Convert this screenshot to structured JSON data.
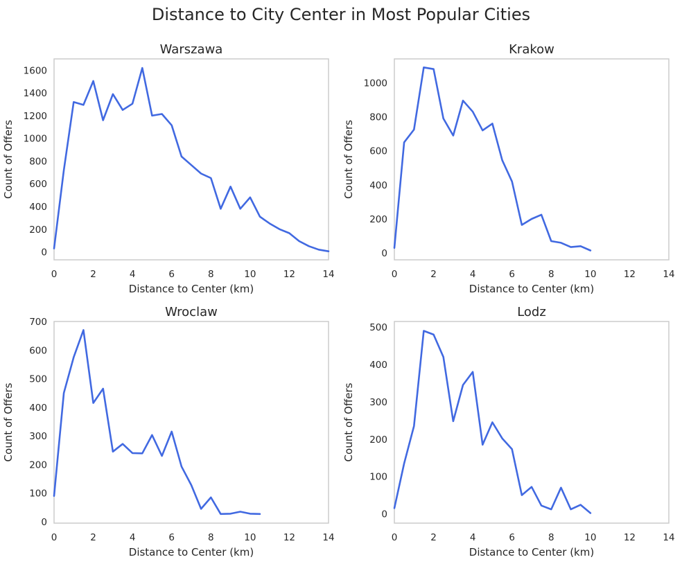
{
  "figure": {
    "title": "Distance to City Center in Most Popular Cities",
    "line_color": "#4169E1"
  },
  "chart_data": [
    {
      "type": "line",
      "title": "Warszawa",
      "xlabel": "Distance to Center (km)",
      "ylabel": "Count of Offers",
      "xlim": [
        0,
        14
      ],
      "ylim": [
        -70,
        1700
      ],
      "xticks": [
        0,
        2,
        4,
        6,
        8,
        10,
        12,
        14
      ],
      "yticks": [
        0,
        200,
        400,
        600,
        800,
        1000,
        1200,
        1400,
        1600
      ],
      "grid": false,
      "x": [
        0,
        0.5,
        1,
        1.5,
        2,
        2.5,
        3,
        3.5,
        4,
        4.5,
        5,
        5.5,
        6,
        6.5,
        7,
        7.5,
        8,
        8.5,
        9,
        9.5,
        10,
        10.5,
        11,
        11.5,
        12,
        12.5,
        13,
        13.5,
        14
      ],
      "y": [
        30,
        720,
        1320,
        1295,
        1505,
        1160,
        1390,
        1250,
        1305,
        1620,
        1200,
        1215,
        1115,
        840,
        765,
        690,
        650,
        380,
        575,
        380,
        480,
        310,
        250,
        200,
        165,
        95,
        50,
        20,
        5
      ]
    },
    {
      "type": "line",
      "title": "Krakow",
      "xlabel": "Distance to Center (km)",
      "ylabel": "Count of Offers",
      "xlim": [
        0,
        14
      ],
      "ylim": [
        -40,
        1140
      ],
      "xticks": [
        0,
        2,
        4,
        6,
        8,
        10,
        12,
        14
      ],
      "yticks": [
        0,
        200,
        400,
        600,
        800,
        1000
      ],
      "grid": false,
      "x": [
        0,
        0.5,
        1,
        1.5,
        2,
        2.5,
        3,
        3.5,
        4,
        4.5,
        5,
        5.5,
        6,
        6.5,
        7,
        7.5,
        8,
        8.5,
        9,
        9.5,
        10
      ],
      "y": [
        30,
        650,
        725,
        1090,
        1080,
        790,
        690,
        895,
        830,
        720,
        760,
        545,
        420,
        165,
        200,
        225,
        70,
        60,
        35,
        40,
        15
      ]
    },
    {
      "type": "line",
      "title": "Wroclaw",
      "xlabel": "Distance to Center (km)",
      "ylabel": "Count of Offers",
      "xlim": [
        0,
        14
      ],
      "ylim": [
        -5,
        700
      ],
      "xticks": [
        0,
        2,
        4,
        6,
        8,
        10,
        12,
        14
      ],
      "yticks": [
        0,
        100,
        200,
        300,
        400,
        500,
        600,
        700
      ],
      "grid": false,
      "x": [
        0,
        0.5,
        1,
        1.5,
        2,
        2.5,
        3,
        3.5,
        4,
        4.5,
        5,
        5.5,
        6,
        6.5,
        7,
        7.5,
        8,
        8.5,
        9,
        9.5,
        10,
        10.5
      ],
      "y": [
        90,
        450,
        575,
        670,
        415,
        465,
        245,
        272,
        240,
        239,
        303,
        230,
        315,
        193,
        128,
        45,
        85,
        27,
        28,
        35,
        28,
        27
      ]
    },
    {
      "type": "line",
      "title": "Lodz",
      "xlabel": "Distance to Center (km)",
      "ylabel": "Count of Offers",
      "xlim": [
        0,
        14
      ],
      "ylim": [
        -25,
        515
      ],
      "xticks": [
        0,
        2,
        4,
        6,
        8,
        10,
        12,
        14
      ],
      "yticks": [
        0,
        100,
        200,
        300,
        400,
        500
      ],
      "grid": false,
      "x": [
        0,
        0.5,
        1,
        1.5,
        2,
        2.5,
        3,
        3.5,
        4,
        4.5,
        5,
        5.5,
        6,
        6.5,
        7,
        7.5,
        8,
        8.5,
        9,
        9.5,
        10
      ],
      "y": [
        15,
        135,
        235,
        490,
        480,
        420,
        248,
        345,
        380,
        185,
        245,
        202,
        173,
        50,
        72,
        22,
        12,
        70,
        12,
        24,
        2
      ]
    }
  ]
}
